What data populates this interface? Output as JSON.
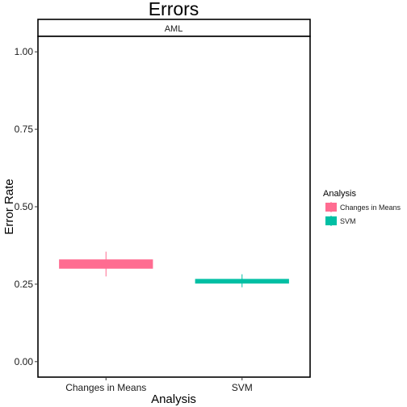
{
  "chart_data": {
    "type": "bar",
    "title": "Errors",
    "panel": "AML",
    "xlabel": "Analysis",
    "ylabel": "Error Rate",
    "categories": [
      "Changes in Means",
      "SVM"
    ],
    "yticks": [
      "0.00",
      "0.25",
      "0.50",
      "0.75",
      "1.00"
    ],
    "ylim": [
      -0.05,
      1.05
    ],
    "grid": false,
    "legend_position": "right",
    "legend": {
      "title": "Analysis",
      "entries": [
        "Changes in Means",
        "SVM"
      ]
    },
    "series": [
      {
        "category": "Changes in Means",
        "lower": 0.3,
        "upper": 0.33,
        "min": 0.275,
        "max": 0.355,
        "color": "#FF6C91"
      },
      {
        "category": "SVM",
        "lower": 0.252,
        "upper": 0.267,
        "min": 0.24,
        "max": 0.282,
        "color": "#00BFA4"
      }
    ]
  }
}
